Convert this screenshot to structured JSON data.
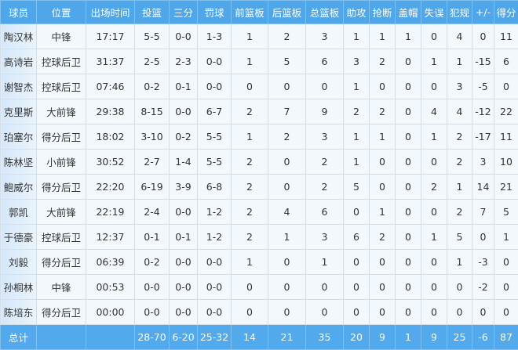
{
  "headers": [
    "球员",
    "位置",
    "出场时间",
    "投篮",
    "三分",
    "罚球",
    "前篮板",
    "后篮板",
    "总篮板",
    "助攻",
    "抢断",
    "盖帽",
    "失误",
    "犯规",
    "+/-",
    "得分"
  ],
  "rows": [
    [
      "陶汉林",
      "中锋",
      "17:17",
      "5-5",
      "0-0",
      "1-3",
      "1",
      "2",
      "3",
      "1",
      "1",
      "1",
      "0",
      "4",
      "0",
      "11"
    ],
    [
      "高诗岩",
      "控球后卫",
      "31:37",
      "2-5",
      "2-3",
      "0-0",
      "1",
      "5",
      "6",
      "3",
      "2",
      "0",
      "1",
      "1",
      "-15",
      "6"
    ],
    [
      "谢智杰",
      "控球后卫",
      "07:46",
      "0-2",
      "0-1",
      "0-0",
      "0",
      "0",
      "0",
      "1",
      "0",
      "0",
      "0",
      "3",
      "-5",
      "0"
    ],
    [
      "克里斯",
      "大前锋",
      "29:38",
      "8-15",
      "0-0",
      "6-7",
      "2",
      "7",
      "9",
      "2",
      "2",
      "0",
      "4",
      "4",
      "-12",
      "22"
    ],
    [
      "珀塞尔",
      "得分后卫",
      "18:02",
      "3-10",
      "0-2",
      "5-5",
      "1",
      "2",
      "3",
      "1",
      "1",
      "0",
      "1",
      "2",
      "-17",
      "11"
    ],
    [
      "陈林坚",
      "小前锋",
      "30:52",
      "2-7",
      "1-4",
      "5-5",
      "2",
      "0",
      "2",
      "1",
      "0",
      "0",
      "0",
      "2",
      "3",
      "10"
    ],
    [
      "鲍威尔",
      "得分后卫",
      "22:20",
      "6-19",
      "3-9",
      "6-8",
      "2",
      "0",
      "2",
      "5",
      "0",
      "0",
      "2",
      "1",
      "14",
      "21"
    ],
    [
      "郭凯",
      "大前锋",
      "22:19",
      "2-4",
      "0-0",
      "1-2",
      "2",
      "4",
      "6",
      "0",
      "1",
      "0",
      "0",
      "2",
      "7",
      "5"
    ],
    [
      "于德豪",
      "控球后卫",
      "12:37",
      "0-1",
      "0-1",
      "1-2",
      "2",
      "1",
      "3",
      "6",
      "2",
      "0",
      "1",
      "5",
      "0",
      "1"
    ],
    [
      "刘毅",
      "得分后卫",
      "06:39",
      "0-2",
      "0-0",
      "0-0",
      "1",
      "0",
      "1",
      "0",
      "0",
      "0",
      "0",
      "1",
      "-3",
      "0"
    ],
    [
      "孙桐林",
      "中锋",
      "00:53",
      "0-0",
      "0-0",
      "0-0",
      "0",
      "0",
      "0",
      "0",
      "0",
      "0",
      "0",
      "0",
      "-2",
      "0"
    ],
    [
      "陈培东",
      "得分后卫",
      "00:00",
      "0-0",
      "0-0",
      "0-0",
      "0",
      "0",
      "0",
      "0",
      "0",
      "0",
      "0",
      "0",
      "0",
      "0"
    ]
  ],
  "total": [
    "总计",
    "",
    "",
    "28-70",
    "6-20",
    "25-32",
    "14",
    "21",
    "35",
    "20",
    "9",
    "1",
    "9",
    "25",
    "-6",
    "87"
  ],
  "colors": {
    "header_bg": "#4fa7e9",
    "total_bg": "#52aaec",
    "cell_bg": "#f3f8fd"
  }
}
